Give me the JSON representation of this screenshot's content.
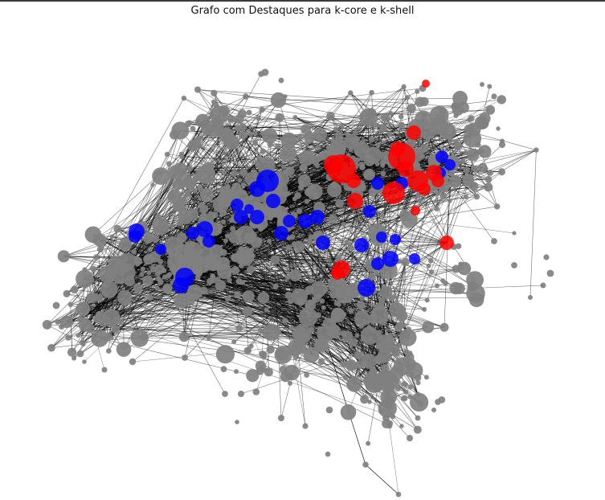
{
  "figure": {
    "title": "Grafo com Destaques para k-core e k-shell"
  },
  "colors": {
    "regular_node": "#808080",
    "k_core_node": "#ff0000",
    "k_shell_node": "#0000ff",
    "edge": "#000000",
    "background": "#ffffff"
  }
}
